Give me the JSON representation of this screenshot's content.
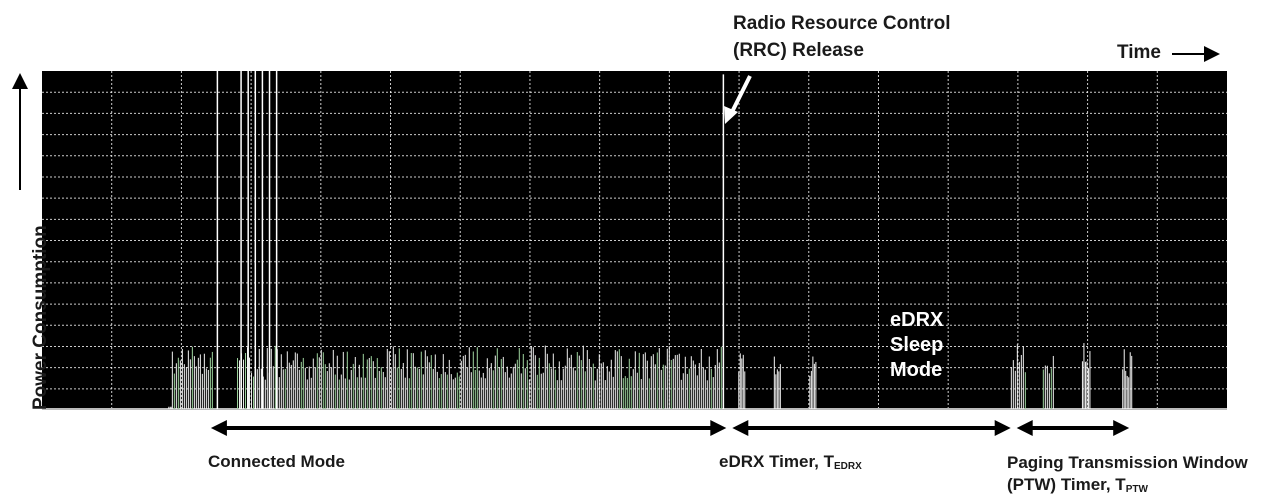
{
  "chart_data": {
    "type": "area",
    "annotation": "Radio Resource Control\n(RRC) Release",
    "xlabel": "Time",
    "ylabel": "Power Consumption",
    "grid": true,
    "ticks_shown": false,
    "x_range": [
      0,
      100
    ],
    "y_range": [
      0,
      100
    ],
    "regions": [
      {
        "name": "connected",
        "label": "Connected Mode",
        "sub": "",
        "start": 14,
        "end": 58
      },
      {
        "name": "edrx",
        "label": "eDRX Timer, T",
        "sub": "EDRX",
        "start": 58,
        "end": 82
      },
      {
        "name": "ptw",
        "label": "(PTW) Timer, T",
        "sub": "PTW",
        "start": 82,
        "end": 92
      }
    ],
    "ptw_label_line1": "Paging Transmission Window",
    "sleep_label": [
      "eDRX",
      "Sleep",
      "Mode"
    ],
    "rrc_release_time": 57.4,
    "series": [
      {
        "segments": [
          {
            "start": 10.7,
            "end": 11.0,
            "level": 1
          },
          {
            "start": 11.0,
            "end": 14.5,
            "level": 19,
            "burst": true
          },
          {
            "start": 16.5,
            "end": 18.0,
            "level": 19,
            "burst": true
          },
          {
            "start": 18.0,
            "end": 57.5,
            "level": 19,
            "burst": true
          },
          {
            "start": 58.8,
            "end": 59.4,
            "level": 17
          },
          {
            "start": 61.8,
            "end": 62.4,
            "level": 18
          },
          {
            "start": 64.8,
            "end": 65.4,
            "level": 17
          },
          {
            "start": 81.8,
            "end": 83.0,
            "level": 20,
            "burst": true
          },
          {
            "start": 84.5,
            "end": 85.5,
            "level": 17,
            "burst": true
          },
          {
            "start": 87.8,
            "end": 88.5,
            "level": 20
          },
          {
            "start": 91.2,
            "end": 92.0,
            "level": 18
          }
        ],
        "spikes": [
          {
            "x": 14.8,
            "level": 100
          },
          {
            "x": 16.8,
            "level": 100
          },
          {
            "x": 17.4,
            "level": 100
          },
          {
            "x": 18.0,
            "level": 100
          },
          {
            "x": 18.6,
            "level": 100
          },
          {
            "x": 19.2,
            "level": 100
          },
          {
            "x": 19.8,
            "level": 100
          },
          {
            "x": 57.5,
            "level": 99
          }
        ]
      }
    ]
  }
}
